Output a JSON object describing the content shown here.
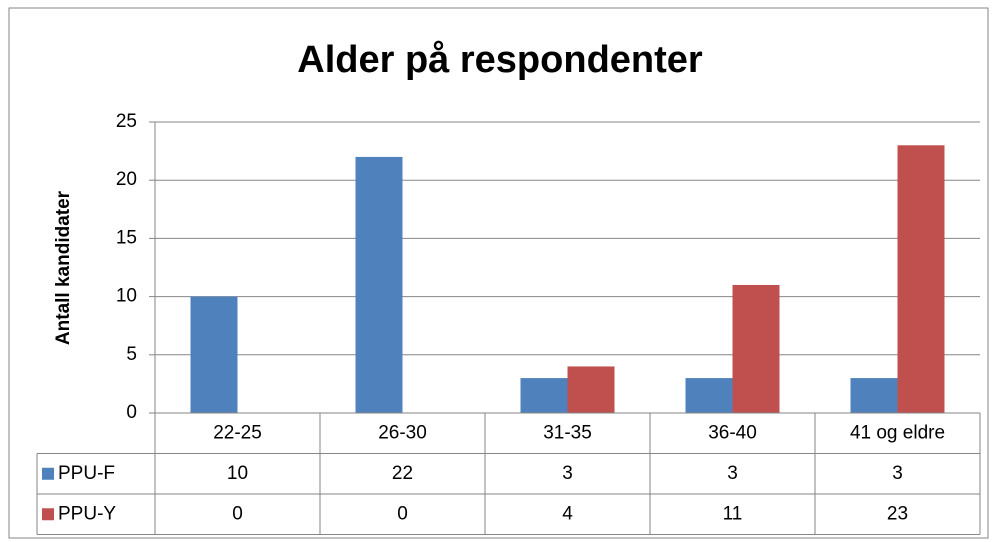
{
  "chart_data": {
    "type": "bar",
    "title": "Alder på respondenter",
    "ylabel": "Antall kandidater",
    "categories": [
      "22-25",
      "26-30",
      "31-35",
      "36-40",
      "41 og eldre"
    ],
    "series": [
      {
        "name": "PPU-F",
        "color": "#4f81bd",
        "values": [
          10,
          22,
          3,
          3,
          3
        ]
      },
      {
        "name": "PPU-Y",
        "color": "#c0504d",
        "values": [
          0,
          0,
          4,
          11,
          23
        ]
      }
    ],
    "ylim": [
      0,
      25
    ],
    "yticks": [
      0,
      5,
      10,
      15,
      20,
      25
    ],
    "grid": true,
    "data_table": true
  }
}
